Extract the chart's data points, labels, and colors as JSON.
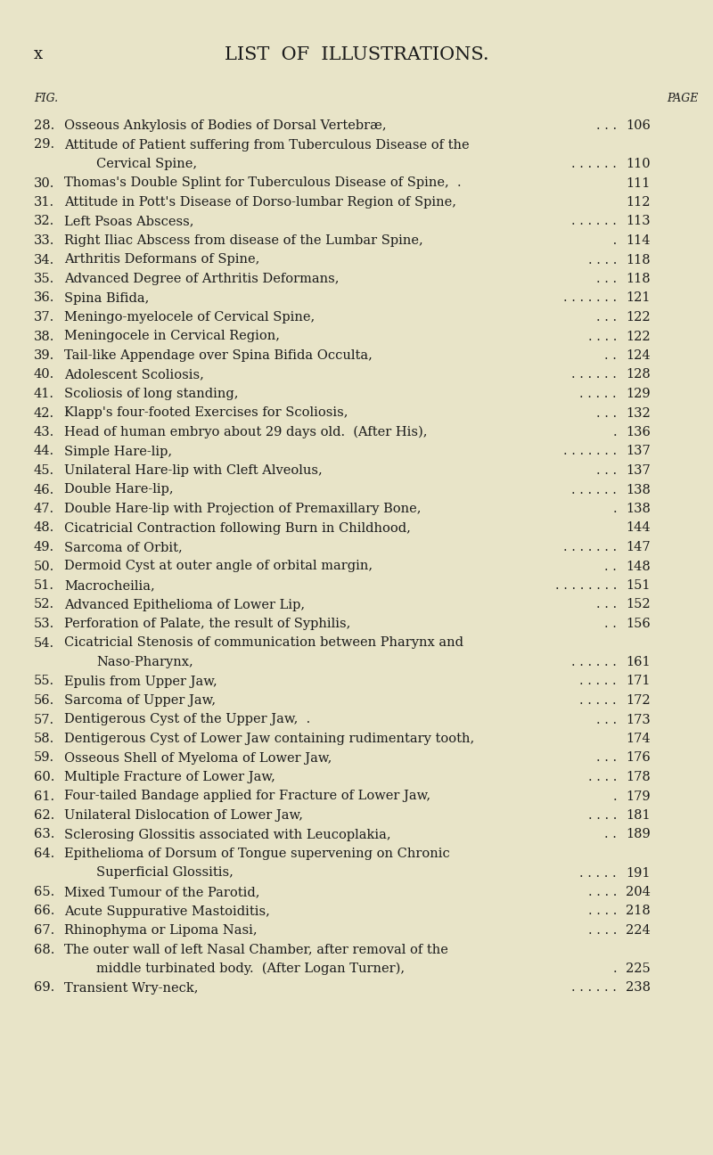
{
  "bg_color": "#e8e4c8",
  "text_color": "#1a1a1a",
  "page_label": "x",
  "title": "LIST  OF  ILLUSTRATIONS.",
  "col_fig": "FIG.",
  "col_page": "PAGE",
  "entries": [
    {
      "num": "28.",
      "text": "Osseous Ankylosis of Bodies of Dorsal Vertebræ,",
      "dots": ". . .",
      "page": "106",
      "indent": false
    },
    {
      "num": "29.",
      "text": "Attitude of Patient suffering from Tuberculous Disease of the",
      "dots": "",
      "page": "",
      "indent": false
    },
    {
      "num": "",
      "text": "Cervical Spine,",
      "dots": ". . . . . .",
      "page": "110",
      "indent": true
    },
    {
      "num": "30.",
      "text": "Thomas's Double Splint for Tuberculous Disease of Spine,  .",
      "dots": "",
      "page": "111",
      "indent": false
    },
    {
      "num": "31.",
      "text": "Attitude in Pott's Disease of Dorso-lumbar Region of Spine,",
      "dots": "",
      "page": "112",
      "indent": false
    },
    {
      "num": "32.",
      "text": "Left Psoas Abscess,",
      "dots": ". . . . . .",
      "page": "113",
      "indent": false
    },
    {
      "num": "33.",
      "text": "Right Iliac Abscess from disease of the Lumbar Spine,",
      "dots": " .",
      "page": "114",
      "indent": false
    },
    {
      "num": "34.",
      "text": "Arthritis Deformans of Spine,",
      "dots": ". . . .",
      "page": "118",
      "indent": false
    },
    {
      "num": "35.",
      "text": "Advanced Degree of Arthritis Deformans,",
      "dots": ". . .",
      "page": "118",
      "indent": false
    },
    {
      "num": "36.",
      "text": "Spina Bifida,",
      "dots": ". . . . . . .",
      "page": "121",
      "indent": false
    },
    {
      "num": "37.",
      "text": "Meningo-myelocele of Cervical Spine,",
      "dots": ". . .",
      "page": "122",
      "indent": false
    },
    {
      "num": "38.",
      "text": "Meningocele in Cervical Region,",
      "dots": ". . . .",
      "page": "122",
      "indent": false
    },
    {
      "num": "39.",
      "text": "Tail-like Appendage over Spina Bifida Occulta,",
      "dots": ". .",
      "page": "124",
      "indent": false
    },
    {
      "num": "40.",
      "text": "Adolescent Scoliosis,",
      "dots": ". . . . . .",
      "page": "128",
      "indent": false
    },
    {
      "num": "41.",
      "text": "Scoliosis of long standing,",
      "dots": ". . . . .",
      "page": "129",
      "indent": false
    },
    {
      "num": "42.",
      "text": "Klapp's four-footed Exercises for Scoliosis,",
      "dots": ". . .",
      "page": "132",
      "indent": false
    },
    {
      "num": "43.",
      "text": "Head of human embryo about 29 days old.  (After His),",
      "dots": ".",
      "page": "136",
      "indent": false
    },
    {
      "num": "44.",
      "text": "Simple Hare-lip,",
      "dots": ". . . . . . .",
      "page": "137",
      "indent": false
    },
    {
      "num": "45.",
      "text": "Unilateral Hare-lip with Cleft Alveolus,",
      "dots": ". . .",
      "page": "137",
      "indent": false
    },
    {
      "num": "46.",
      "text": "Double Hare-lip,",
      "dots": ". . . . . .",
      "page": "138",
      "indent": false
    },
    {
      "num": "47.",
      "text": "Double Hare-lip with Projection of Premaxillary Bone,",
      "dots": ".",
      "page": "138",
      "indent": false
    },
    {
      "num": "48.",
      "text": "Cicatricial Contraction following Burn in Childhood,",
      "dots": "",
      "page": "144",
      "indent": false
    },
    {
      "num": "49.",
      "text": "Sarcoma of Orbit,",
      "dots": ". . . . . . .",
      "page": "147",
      "indent": false
    },
    {
      "num": "50.",
      "text": "Dermoid Cyst at outer angle of orbital margin,",
      "dots": ". .",
      "page": "148",
      "indent": false
    },
    {
      "num": "51.",
      "text": "Macrocheilia,",
      "dots": ". . . . . . . .",
      "page": "151",
      "indent": false
    },
    {
      "num": "52.",
      "text": "Advanced Epithelioma of Lower Lip,",
      "dots": ". . .",
      "page": "152",
      "indent": false
    },
    {
      "num": "53.",
      "text": "Perforation of Palate, the result of Syphilis,",
      "dots": ". .",
      "page": "156",
      "indent": false
    },
    {
      "num": "54.",
      "text": "Cicatricial Stenosis of communication between Pharynx and",
      "dots": "",
      "page": "",
      "indent": false
    },
    {
      "num": "",
      "text": "Naso-Pharynx,",
      "dots": ". . . . . .",
      "page": "161",
      "indent": true
    },
    {
      "num": "55.",
      "text": "Epulis from Upper Jaw,",
      "dots": ". . . . .",
      "page": "171",
      "indent": false
    },
    {
      "num": "56.",
      "text": "Sarcoma of Upper Jaw,",
      "dots": ". . . . .",
      "page": "172",
      "indent": false
    },
    {
      "num": "57.",
      "text": "Dentigerous Cyst of the Upper Jaw,  .",
      "dots": ". . .",
      "page": "173",
      "indent": false
    },
    {
      "num": "58.",
      "text": "Dentigerous Cyst of Lower Jaw containing rudimentary tooth,",
      "dots": "",
      "page": "174",
      "indent": false
    },
    {
      "num": "59.",
      "text": "Osseous Shell of Myeloma of Lower Jaw,",
      "dots": ". . .",
      "page": "176",
      "indent": false
    },
    {
      "num": "60.",
      "text": "Multiple Fracture of Lower Jaw,",
      "dots": ". . . .",
      "page": "178",
      "indent": false
    },
    {
      "num": "61.",
      "text": "Four-tailed Bandage applied for Fracture of Lower Jaw,",
      "dots": ".",
      "page": "179",
      "indent": false
    },
    {
      "num": "62.",
      "text": "Unilateral Dislocation of Lower Jaw,",
      "dots": ". . . .",
      "page": "181",
      "indent": false
    },
    {
      "num": "63.",
      "text": "Sclerosing Glossitis associated with Leucoplakia,",
      "dots": ". .",
      "page": "189",
      "indent": false
    },
    {
      "num": "64.",
      "text": "Epithelioma of Dorsum of Tongue supervening on Chronic",
      "dots": "",
      "page": "",
      "indent": false
    },
    {
      "num": "",
      "text": "Superficial Glossitis,",
      "dots": ". . . . .",
      "page": "191",
      "indent": true
    },
    {
      "num": "65.",
      "text": "Mixed Tumour of the Parotid,",
      "dots": ". . . .",
      "page": "204",
      "indent": false
    },
    {
      "num": "66.",
      "text": "Acute Suppurative Mastoiditis,",
      "dots": ". . . .",
      "page": "218",
      "indent": false
    },
    {
      "num": "67.",
      "text": "Rhinophyma or Lipoma Nasi,",
      "dots": ". . . .",
      "page": "224",
      "indent": false
    },
    {
      "num": "68.",
      "text": "The outer wall of left Nasal Chamber, after removal of the",
      "dots": "",
      "page": "",
      "indent": false
    },
    {
      "num": "",
      "text": "middle turbinated body.  (After Logan Turner),",
      "dots": ".",
      "page": "225",
      "indent": true
    },
    {
      "num": "69.",
      "text": "Transient Wry-neck,",
      "dots": ". . . . . .",
      "page": "238",
      "indent": false
    }
  ]
}
